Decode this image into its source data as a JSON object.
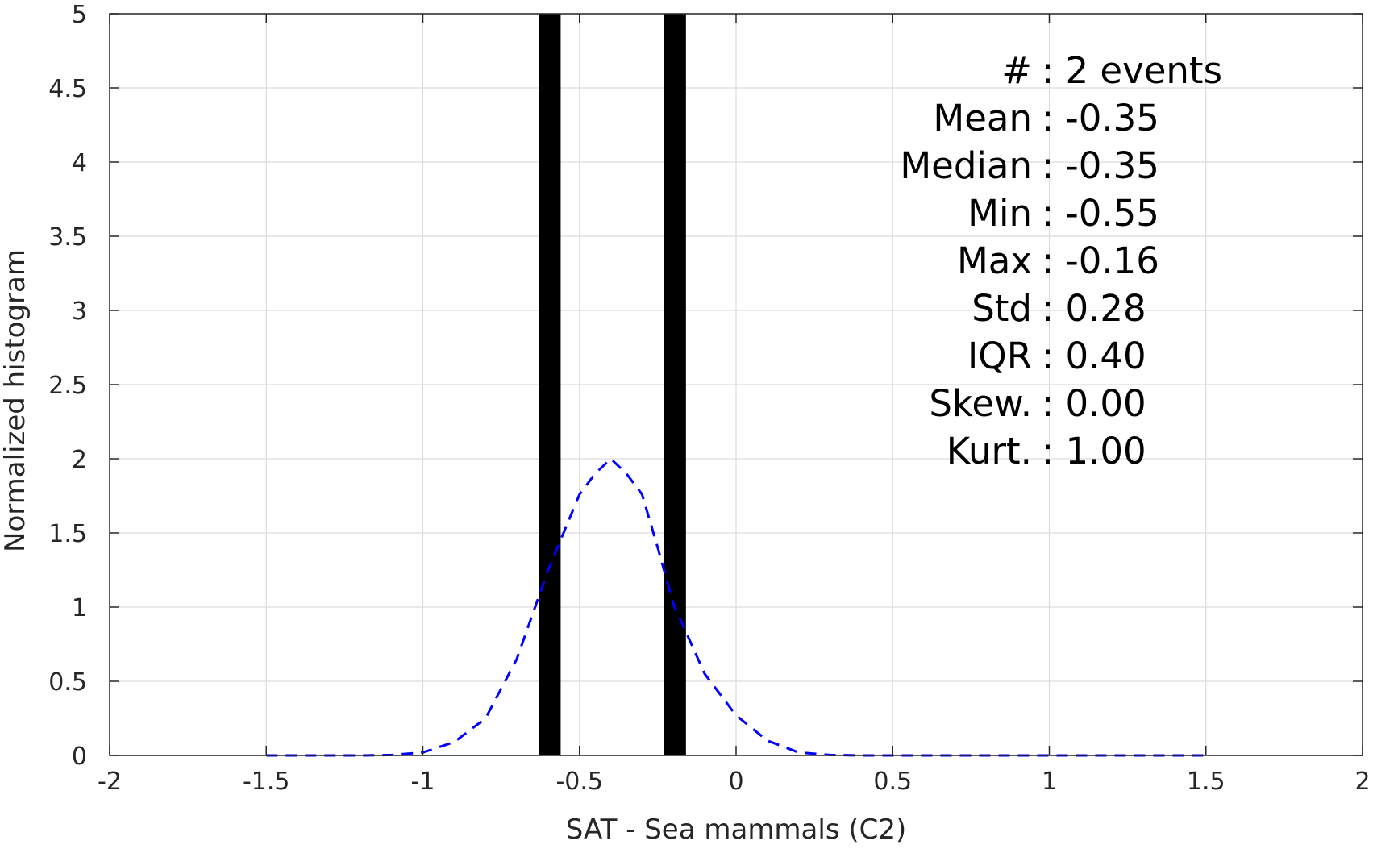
{
  "chart_data": {
    "type": "bar",
    "xlabel": "SAT - Sea mammals (C2)",
    "ylabel": "Normalized histogram",
    "xlim": [
      -2,
      2
    ],
    "ylim": [
      0,
      5
    ],
    "x_ticks": [
      -2,
      -1.5,
      -1,
      -0.5,
      0,
      0.5,
      1,
      1.5,
      2
    ],
    "x_tick_labels": [
      "-2",
      "-1.5",
      "-1",
      "-0.5",
      "0",
      "0.5",
      "1",
      "1.5",
      "2"
    ],
    "y_ticks": [
      0,
      0.5,
      1,
      1.5,
      2,
      2.5,
      3,
      3.5,
      4,
      4.5,
      5
    ],
    "y_tick_labels": [
      "0",
      "0.5",
      "1",
      "1.5",
      "2",
      "2.5",
      "3",
      "3.5",
      "4",
      "4.5",
      "5"
    ],
    "grid": true,
    "histogram": {
      "color": "#000000",
      "bars": [
        {
          "x_start": -0.63,
          "x_end": -0.56,
          "value": 5
        },
        {
          "x_start": -0.23,
          "x_end": -0.16,
          "value": 5
        }
      ]
    },
    "fit_curve": {
      "style": "dashed",
      "color": "#0000ff",
      "x": [
        -1.5,
        -1.4,
        -1.3,
        -1.2,
        -1.1,
        -1.0,
        -0.9,
        -0.8,
        -0.7,
        -0.6,
        -0.5,
        -0.45,
        -0.4,
        -0.35,
        -0.3,
        -0.25,
        -0.2,
        -0.1,
        0.0,
        0.1,
        0.2,
        0.3,
        0.4,
        0.5,
        0.6,
        0.7,
        0.8,
        0.9,
        1.0,
        1.1,
        1.2,
        1.3,
        1.4,
        1.5
      ],
      "y": [
        0,
        0,
        0,
        0,
        0.003,
        0.02,
        0.09,
        0.25,
        0.65,
        1.25,
        1.76,
        1.9,
        2.0,
        1.9,
        1.76,
        1.4,
        1.02,
        0.55,
        0.27,
        0.1,
        0.02,
        0.003,
        0,
        0,
        0,
        0,
        0,
        0,
        0,
        0,
        0,
        0,
        0,
        0
      ]
    },
    "stats": [
      {
        "label": "#  : 2 events"
      },
      {
        "label": "Mean : -0.35"
      },
      {
        "label": "Median : -0.35"
      },
      {
        "label": "Min : -0.55"
      },
      {
        "label": "Max : -0.16"
      },
      {
        "label": "Std : 0.28"
      },
      {
        "label": "IQR : 0.40"
      },
      {
        "label": "Skew. : 0.00"
      },
      {
        "label": "Kurt. : 1.00"
      }
    ]
  }
}
